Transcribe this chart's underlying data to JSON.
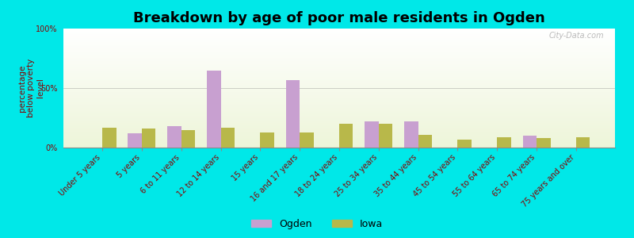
{
  "title": "Breakdown by age of poor male residents in Ogden",
  "ylabel": "percentage\nbelow poverty\nlevel",
  "categories": [
    "Under 5 years",
    "5 years",
    "6 to 11 years",
    "12 to 14 years",
    "15 years",
    "16 and 17 years",
    "18 to 24 years",
    "25 to 34 years",
    "35 to 44 years",
    "45 to 54 years",
    "55 to 64 years",
    "65 to 74 years",
    "75 years and over"
  ],
  "ogden_values": [
    0,
    12,
    18,
    65,
    0,
    57,
    0,
    22,
    22,
    0,
    0,
    10,
    0
  ],
  "iowa_values": [
    17,
    16,
    15,
    17,
    13,
    13,
    20,
    20,
    11,
    7,
    9,
    8,
    9
  ],
  "ogden_color": "#c8a0d0",
  "iowa_color": "#b8b84a",
  "background_color": "#00e8e8",
  "ylim": [
    0,
    100
  ],
  "yticks": [
    0,
    50,
    100
  ],
  "ytick_labels": [
    "0%",
    "50%",
    "100%"
  ],
  "bar_width": 0.35,
  "title_fontsize": 13,
  "axis_label_fontsize": 7.5,
  "tick_fontsize": 7,
  "legend_fontsize": 9,
  "watermark": "City-Data.com"
}
